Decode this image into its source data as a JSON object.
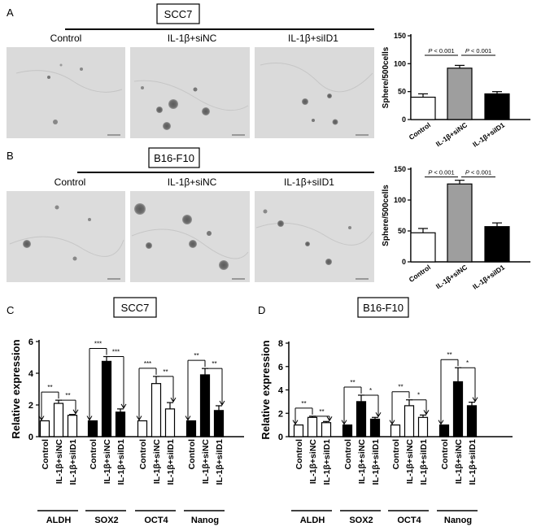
{
  "panels": {
    "A": {
      "letter": "A",
      "cell_line": "SCC7",
      "image_labels": [
        "Control",
        "IL-1β+siNC",
        "IL-1β+siID1"
      ]
    },
    "B": {
      "letter": "B",
      "cell_line": "B16-F10",
      "image_labels": [
        "Control",
        "IL-1β+siNC",
        "IL-1β+siID1"
      ]
    },
    "C": {
      "letter": "C",
      "cell_line": "SCC7"
    },
    "D": {
      "letter": "D",
      "cell_line": "B16-F10"
    }
  },
  "colors": {
    "white_bar": "#ffffff",
    "grey_bar": "#9e9e9e",
    "black_bar": "#000000",
    "micrograph_bg": "#d9d9d9"
  },
  "chart_data": [
    {
      "id": "A-bar",
      "type": "bar",
      "ylabel": "Sphere/500cells",
      "categories": [
        "Control",
        "IL-1β+siNC",
        "IL-1β+siID1"
      ],
      "values": [
        40,
        92,
        46
      ],
      "errors": [
        6,
        5,
        4
      ],
      "colors": [
        "#ffffff",
        "#9e9e9e",
        "#000000"
      ],
      "ylim": [
        0,
        150
      ],
      "yticks": [
        0,
        50,
        100,
        150
      ],
      "annotations": [
        {
          "text": "P < 0.001",
          "from": 0,
          "to": 1
        },
        {
          "text": "P < 0.001",
          "from": 1,
          "to": 2
        }
      ]
    },
    {
      "id": "B-bar",
      "type": "bar",
      "ylabel": "Sphere/500cells",
      "categories": [
        "Control",
        "IL-1β+siNC",
        "IL-1β+siID1"
      ],
      "values": [
        47,
        126,
        57
      ],
      "errors": [
        7,
        6,
        6
      ],
      "colors": [
        "#ffffff",
        "#9e9e9e",
        "#000000"
      ],
      "ylim": [
        0,
        150
      ],
      "yticks": [
        0,
        50,
        100,
        150
      ],
      "annotations": [
        {
          "text": "P < 0.001",
          "from": 0,
          "to": 1
        },
        {
          "text": "P < 0.001",
          "from": 1,
          "to": 2
        }
      ]
    },
    {
      "id": "C-bar",
      "type": "bar",
      "ylabel": "Relative expression",
      "ylim": [
        0,
        6
      ],
      "yticks": [
        0,
        2,
        4,
        6
      ],
      "bar_labels": [
        "Control",
        "IL-1β+siNC",
        "IL-1β+siID1"
      ],
      "groups": [
        {
          "name": "ALDH",
          "fill": "white",
          "values": [
            1,
            2.1,
            1.35
          ],
          "errors": [
            0,
            0.2,
            0.05
          ],
          "sig": [
            "**",
            "**"
          ]
        },
        {
          "name": "SOX2",
          "fill": "black",
          "values": [
            1,
            4.75,
            1.55
          ],
          "errors": [
            0,
            0.3,
            0.2
          ],
          "sig": [
            "***",
            "***"
          ]
        },
        {
          "name": "OCT4",
          "fill": "white",
          "values": [
            1,
            3.35,
            1.75
          ],
          "errors": [
            0,
            0.45,
            0.4
          ],
          "sig": [
            "***",
            "**"
          ]
        },
        {
          "name": "Nanog",
          "fill": "black",
          "values": [
            1,
            3.9,
            1.65
          ],
          "errors": [
            0,
            0.4,
            0.3
          ],
          "sig": [
            "**",
            "**"
          ]
        }
      ]
    },
    {
      "id": "D-bar",
      "type": "bar",
      "ylabel": "Relative expression",
      "ylim": [
        0,
        8
      ],
      "yticks": [
        0,
        2,
        4,
        6,
        8
      ],
      "bar_labels": [
        "Control",
        "IL-1β+siNC",
        "IL-1β+siID1"
      ],
      "groups": [
        {
          "name": "ALDH",
          "fill": "white",
          "values": [
            1,
            1.65,
            1.2
          ],
          "errors": [
            0,
            0.1,
            0.1
          ],
          "sig": [
            "**",
            "**"
          ]
        },
        {
          "name": "SOX2",
          "fill": "black",
          "values": [
            1,
            3.0,
            1.5
          ],
          "errors": [
            0,
            0.55,
            0.15
          ],
          "sig": [
            "**",
            "*"
          ]
        },
        {
          "name": "OCT4",
          "fill": "white",
          "values": [
            1,
            2.65,
            1.65
          ],
          "errors": [
            0,
            0.5,
            0.2
          ],
          "sig": [
            "**",
            "*"
          ]
        },
        {
          "name": "Nanog",
          "fill": "black",
          "values": [
            1,
            4.7,
            2.65
          ],
          "errors": [
            0,
            1.2,
            0.3
          ],
          "sig": [
            "**",
            "*"
          ]
        }
      ]
    }
  ]
}
